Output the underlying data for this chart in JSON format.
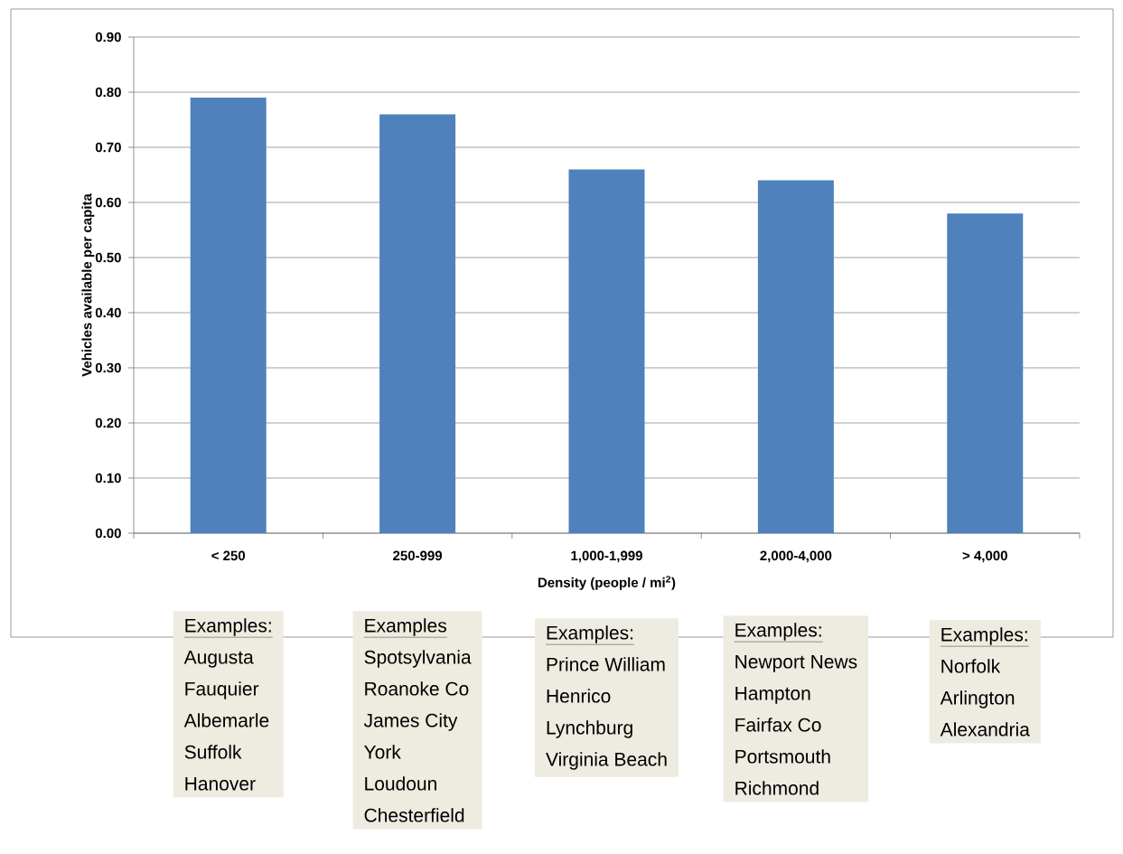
{
  "chart_data": {
    "type": "bar",
    "xlabel": "Density (people / mi$^{2}$)",
    "ylabel": "Vehicles available per capita",
    "categories": [
      "< 250",
      "250-999",
      "1,000-1,999",
      "2,000-4,000",
      "> 4,000"
    ],
    "values": [
      0.79,
      0.76,
      0.66,
      0.64,
      0.58
    ],
    "color": "#4f81bd",
    "ylim": [
      0,
      0.9
    ],
    "yticks": [
      {
        "value": 0,
        "label": "0.00"
      },
      {
        "value": 0.1,
        "label": "0.10"
      },
      {
        "value": 0.2,
        "label": "0.20"
      },
      {
        "value": 0.3,
        "label": "0.30"
      },
      {
        "value": 0.4,
        "label": "0.40"
      },
      {
        "value": 0.5,
        "label": "0.50"
      },
      {
        "value": 0.6,
        "label": "0.60"
      },
      {
        "value": 0.7,
        "label": "0.70"
      },
      {
        "value": 0.8,
        "label": "0.80"
      },
      {
        "value": 0.9,
        "label": "0.90"
      }
    ],
    "grid": "y",
    "annotations": [
      "Examples:",
      "Augusta",
      "Fauquier",
      "Albemarle",
      "Suffolk",
      "Hanover",
      "Examples",
      "Spotsylvania",
      "Roanoke Co",
      "James City",
      "York",
      "Loudoun",
      "Chesterfield",
      "Examples:",
      "Prince William",
      "Henrico",
      "Lynchburg",
      "Virginia Beach",
      "Examples:",
      "Newport News",
      "Hampton",
      "Fairfax Co",
      "Portsmouth",
      "Richmond",
      "Examples:",
      "Norfolk",
      "Arlington",
      "Alexandria"
    ]
  }
}
